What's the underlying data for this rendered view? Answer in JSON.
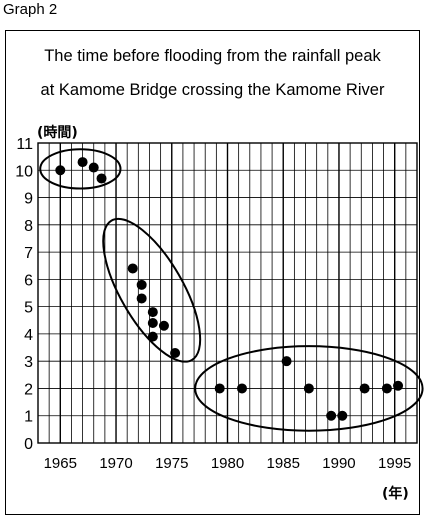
{
  "graph_label": "Graph 2",
  "footnote": "",
  "chart_data": {
    "type": "scatter",
    "title": "The time before flooding from the rainfall peak",
    "subtitle": "at Kamome Bridge crossing the Kamome River",
    "ylabel": "(時間)",
    "xlabel": "(年)",
    "xlim": [
      1963,
      1997
    ],
    "ylim": [
      0,
      11
    ],
    "x_ticks": [
      1965,
      1970,
      1975,
      1980,
      1985,
      1990,
      1995
    ],
    "y_ticks": [
      0,
      1,
      2,
      3,
      4,
      5,
      6,
      7,
      8,
      9,
      10,
      11
    ],
    "grid": true,
    "points": [
      {
        "x": 1965,
        "y": 10.0
      },
      {
        "x": 1967,
        "y": 10.3
      },
      {
        "x": 1968,
        "y": 10.1
      },
      {
        "x": 1968.7,
        "y": 9.7
      },
      {
        "x": 1971.5,
        "y": 6.4
      },
      {
        "x": 1972.3,
        "y": 5.8
      },
      {
        "x": 1972.3,
        "y": 5.3
      },
      {
        "x": 1973.3,
        "y": 4.8
      },
      {
        "x": 1973.3,
        "y": 4.4
      },
      {
        "x": 1973.3,
        "y": 3.9
      },
      {
        "x": 1974.3,
        "y": 4.3
      },
      {
        "x": 1975.3,
        "y": 3.3
      },
      {
        "x": 1979.3,
        "y": 2.0
      },
      {
        "x": 1981.3,
        "y": 2.0
      },
      {
        "x": 1985.3,
        "y": 3.0
      },
      {
        "x": 1987.3,
        "y": 2.0
      },
      {
        "x": 1989.3,
        "y": 1.0
      },
      {
        "x": 1990.3,
        "y": 1.0
      },
      {
        "x": 1992.3,
        "y": 2.0
      },
      {
        "x": 1994.3,
        "y": 2.0
      },
      {
        "x": 1995.3,
        "y": 2.1
      }
    ],
    "groups": [
      {
        "name": "1965-1968",
        "cx": 1966.8,
        "cy": 10.05,
        "rx_years": 3.6,
        "ry_value": 0.72,
        "angle": 0
      },
      {
        "name": "1971-1975",
        "cx": 1973.2,
        "cy": 5.6,
        "rx_years": 2.8,
        "ry_value": 2.95,
        "angle": -30
      },
      {
        "name": "1979-1995",
        "cx": 1987.3,
        "cy": 2.0,
        "rx_years": 10.2,
        "ry_value": 1.55,
        "angle": 0
      }
    ],
    "colors": {
      "points": "#000000",
      "grid": "#000000",
      "ellipse": "#000000"
    }
  }
}
